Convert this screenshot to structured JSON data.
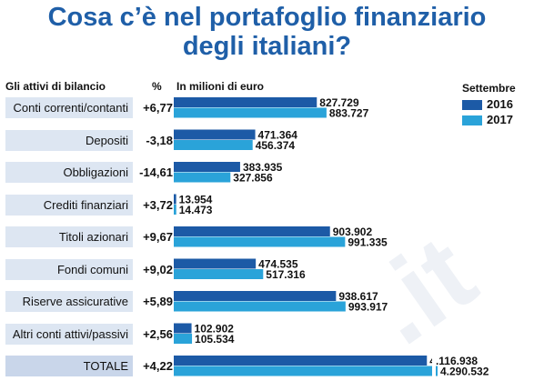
{
  "title_line1": "Cosa c’è nel portafoglio finanziario",
  "title_line2": "degli italiani?",
  "header_items": "Gli attivi di bilancio",
  "header_pct": "%",
  "header_units": "In milioni di euro",
  "legend_title": "Settembre",
  "colors": {
    "2016": "#1c5aa6",
    "2017": "#2aa3d9",
    "title": "#1f5fa8",
    "row_bg": "#dde6f2"
  },
  "chart_data": {
    "type": "bar",
    "orientation": "horizontal",
    "categories": [
      "Conti correnti/contanti",
      "Depositi",
      "Obbligazioni",
      "Crediti finanziari",
      "Titoli azionari",
      "Fondi comuni",
      "Riserve assicurative",
      "Altri conti attivi/passivi",
      "TOTALE"
    ],
    "changes": [
      "+6,77",
      "-3,18",
      "-14,61",
      "+3,72",
      "+9,67",
      "+9,02",
      "+5,89",
      "+2,56",
      "+4,22"
    ],
    "series": [
      {
        "name": "2016",
        "values": [
          827729,
          471364,
          383935,
          13954,
          903902,
          474535,
          938617,
          102902,
          4116938
        ],
        "labels": [
          "827.729",
          "471.364",
          "383.935",
          "13.954",
          "903.902",
          "474.535",
          "938.617",
          "102.902",
          "4.116.938"
        ]
      },
      {
        "name": "2017",
        "values": [
          883727,
          456374,
          327856,
          14473,
          991335,
          517316,
          993917,
          105534,
          4290532
        ],
        "labels": [
          "883.727",
          "456.374",
          "327.856",
          "14.473",
          "991.335",
          "517.316",
          "993.917",
          "105.534",
          "4.290.532"
        ]
      }
    ],
    "ylabel": "In milioni di euro"
  }
}
